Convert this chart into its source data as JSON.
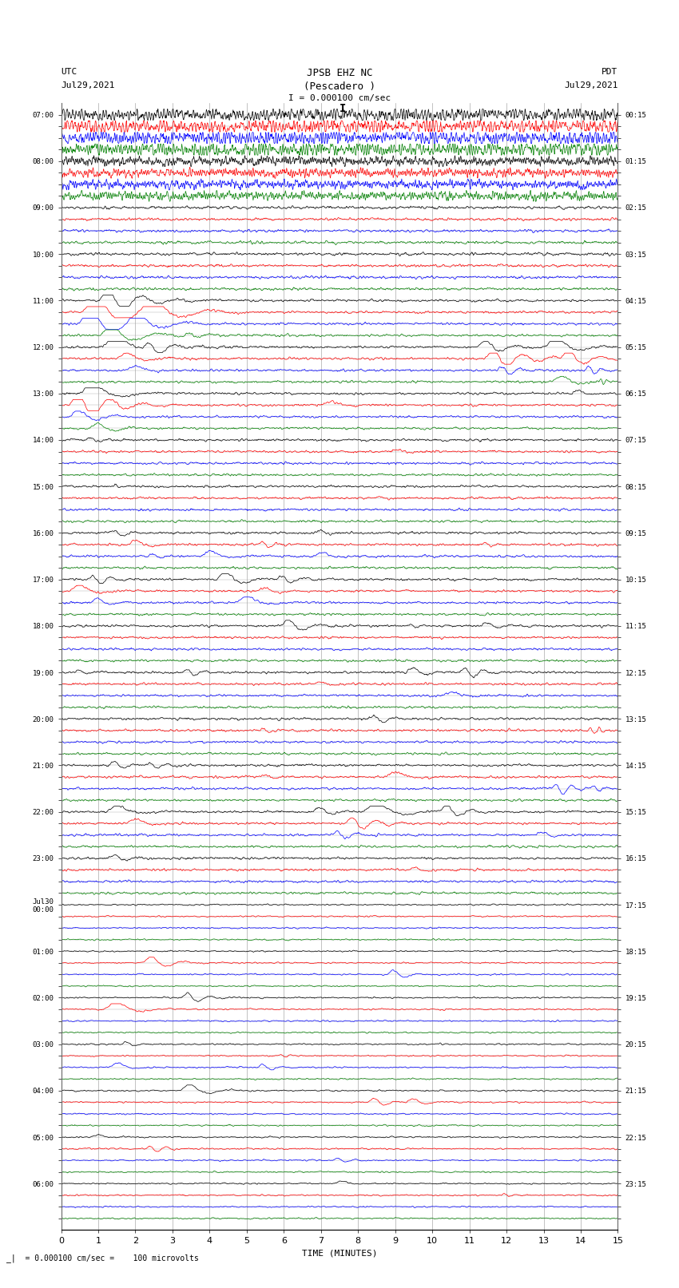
{
  "title_line1": "JPSB EHZ NC",
  "title_line2": "(Pescadero )",
  "title_line3": "I = 0.000100 cm/sec",
  "label_left_top": "UTC",
  "label_left_date": "Jul29,2021",
  "label_right_top": "PDT",
  "label_right_date": "Jul29,2021",
  "xlabel": "TIME (MINUTES)",
  "scale_note": "= 0.000100 cm/sec =    100 microvolts",
  "x_min": 0,
  "x_max": 15,
  "x_ticks": [
    0,
    1,
    2,
    3,
    4,
    5,
    6,
    7,
    8,
    9,
    10,
    11,
    12,
    13,
    14,
    15
  ],
  "left_times": [
    "07:00",
    "",
    "",
    "",
    "08:00",
    "",
    "",
    "",
    "09:00",
    "",
    "",
    "",
    "10:00",
    "",
    "",
    "",
    "11:00",
    "",
    "",
    "",
    "12:00",
    "",
    "",
    "",
    "13:00",
    "",
    "",
    "",
    "14:00",
    "",
    "",
    "",
    "15:00",
    "",
    "",
    "",
    "16:00",
    "",
    "",
    "",
    "17:00",
    "",
    "",
    "",
    "18:00",
    "",
    "",
    "",
    "19:00",
    "",
    "",
    "",
    "20:00",
    "",
    "",
    "",
    "21:00",
    "",
    "",
    "",
    "22:00",
    "",
    "",
    "",
    "23:00",
    "",
    "",
    "",
    "Jul30\n00:00",
    "",
    "",
    "",
    "01:00",
    "",
    "",
    "",
    "02:00",
    "",
    "",
    "",
    "03:00",
    "",
    "",
    "",
    "04:00",
    "",
    "",
    "",
    "05:00",
    "",
    "",
    "",
    "06:00",
    "",
    "",
    ""
  ],
  "right_times": [
    "00:15",
    "",
    "",
    "",
    "01:15",
    "",
    "",
    "",
    "02:15",
    "",
    "",
    "",
    "03:15",
    "",
    "",
    "",
    "04:15",
    "",
    "",
    "",
    "05:15",
    "",
    "",
    "",
    "06:15",
    "",
    "",
    "",
    "07:15",
    "",
    "",
    "",
    "08:15",
    "",
    "",
    "",
    "09:15",
    "",
    "",
    "",
    "10:15",
    "",
    "",
    "",
    "11:15",
    "",
    "",
    "",
    "12:15",
    "",
    "",
    "",
    "13:15",
    "",
    "",
    "",
    "14:15",
    "",
    "",
    "",
    "15:15",
    "",
    "",
    "",
    "16:15",
    "",
    "",
    "",
    "17:15",
    "",
    "",
    "",
    "18:15",
    "",
    "",
    "",
    "19:15",
    "",
    "",
    "",
    "20:15",
    "",
    "",
    "",
    "21:15",
    "",
    "",
    "",
    "22:15",
    "",
    "",
    "",
    "23:15",
    "",
    "",
    ""
  ],
  "n_rows": 96,
  "colors_cycle": [
    "black",
    "red",
    "blue",
    "green"
  ],
  "bg_color": "white",
  "grid_color": "#aaaaaa",
  "fig_width": 8.5,
  "fig_height": 16.13,
  "dpi": 100
}
